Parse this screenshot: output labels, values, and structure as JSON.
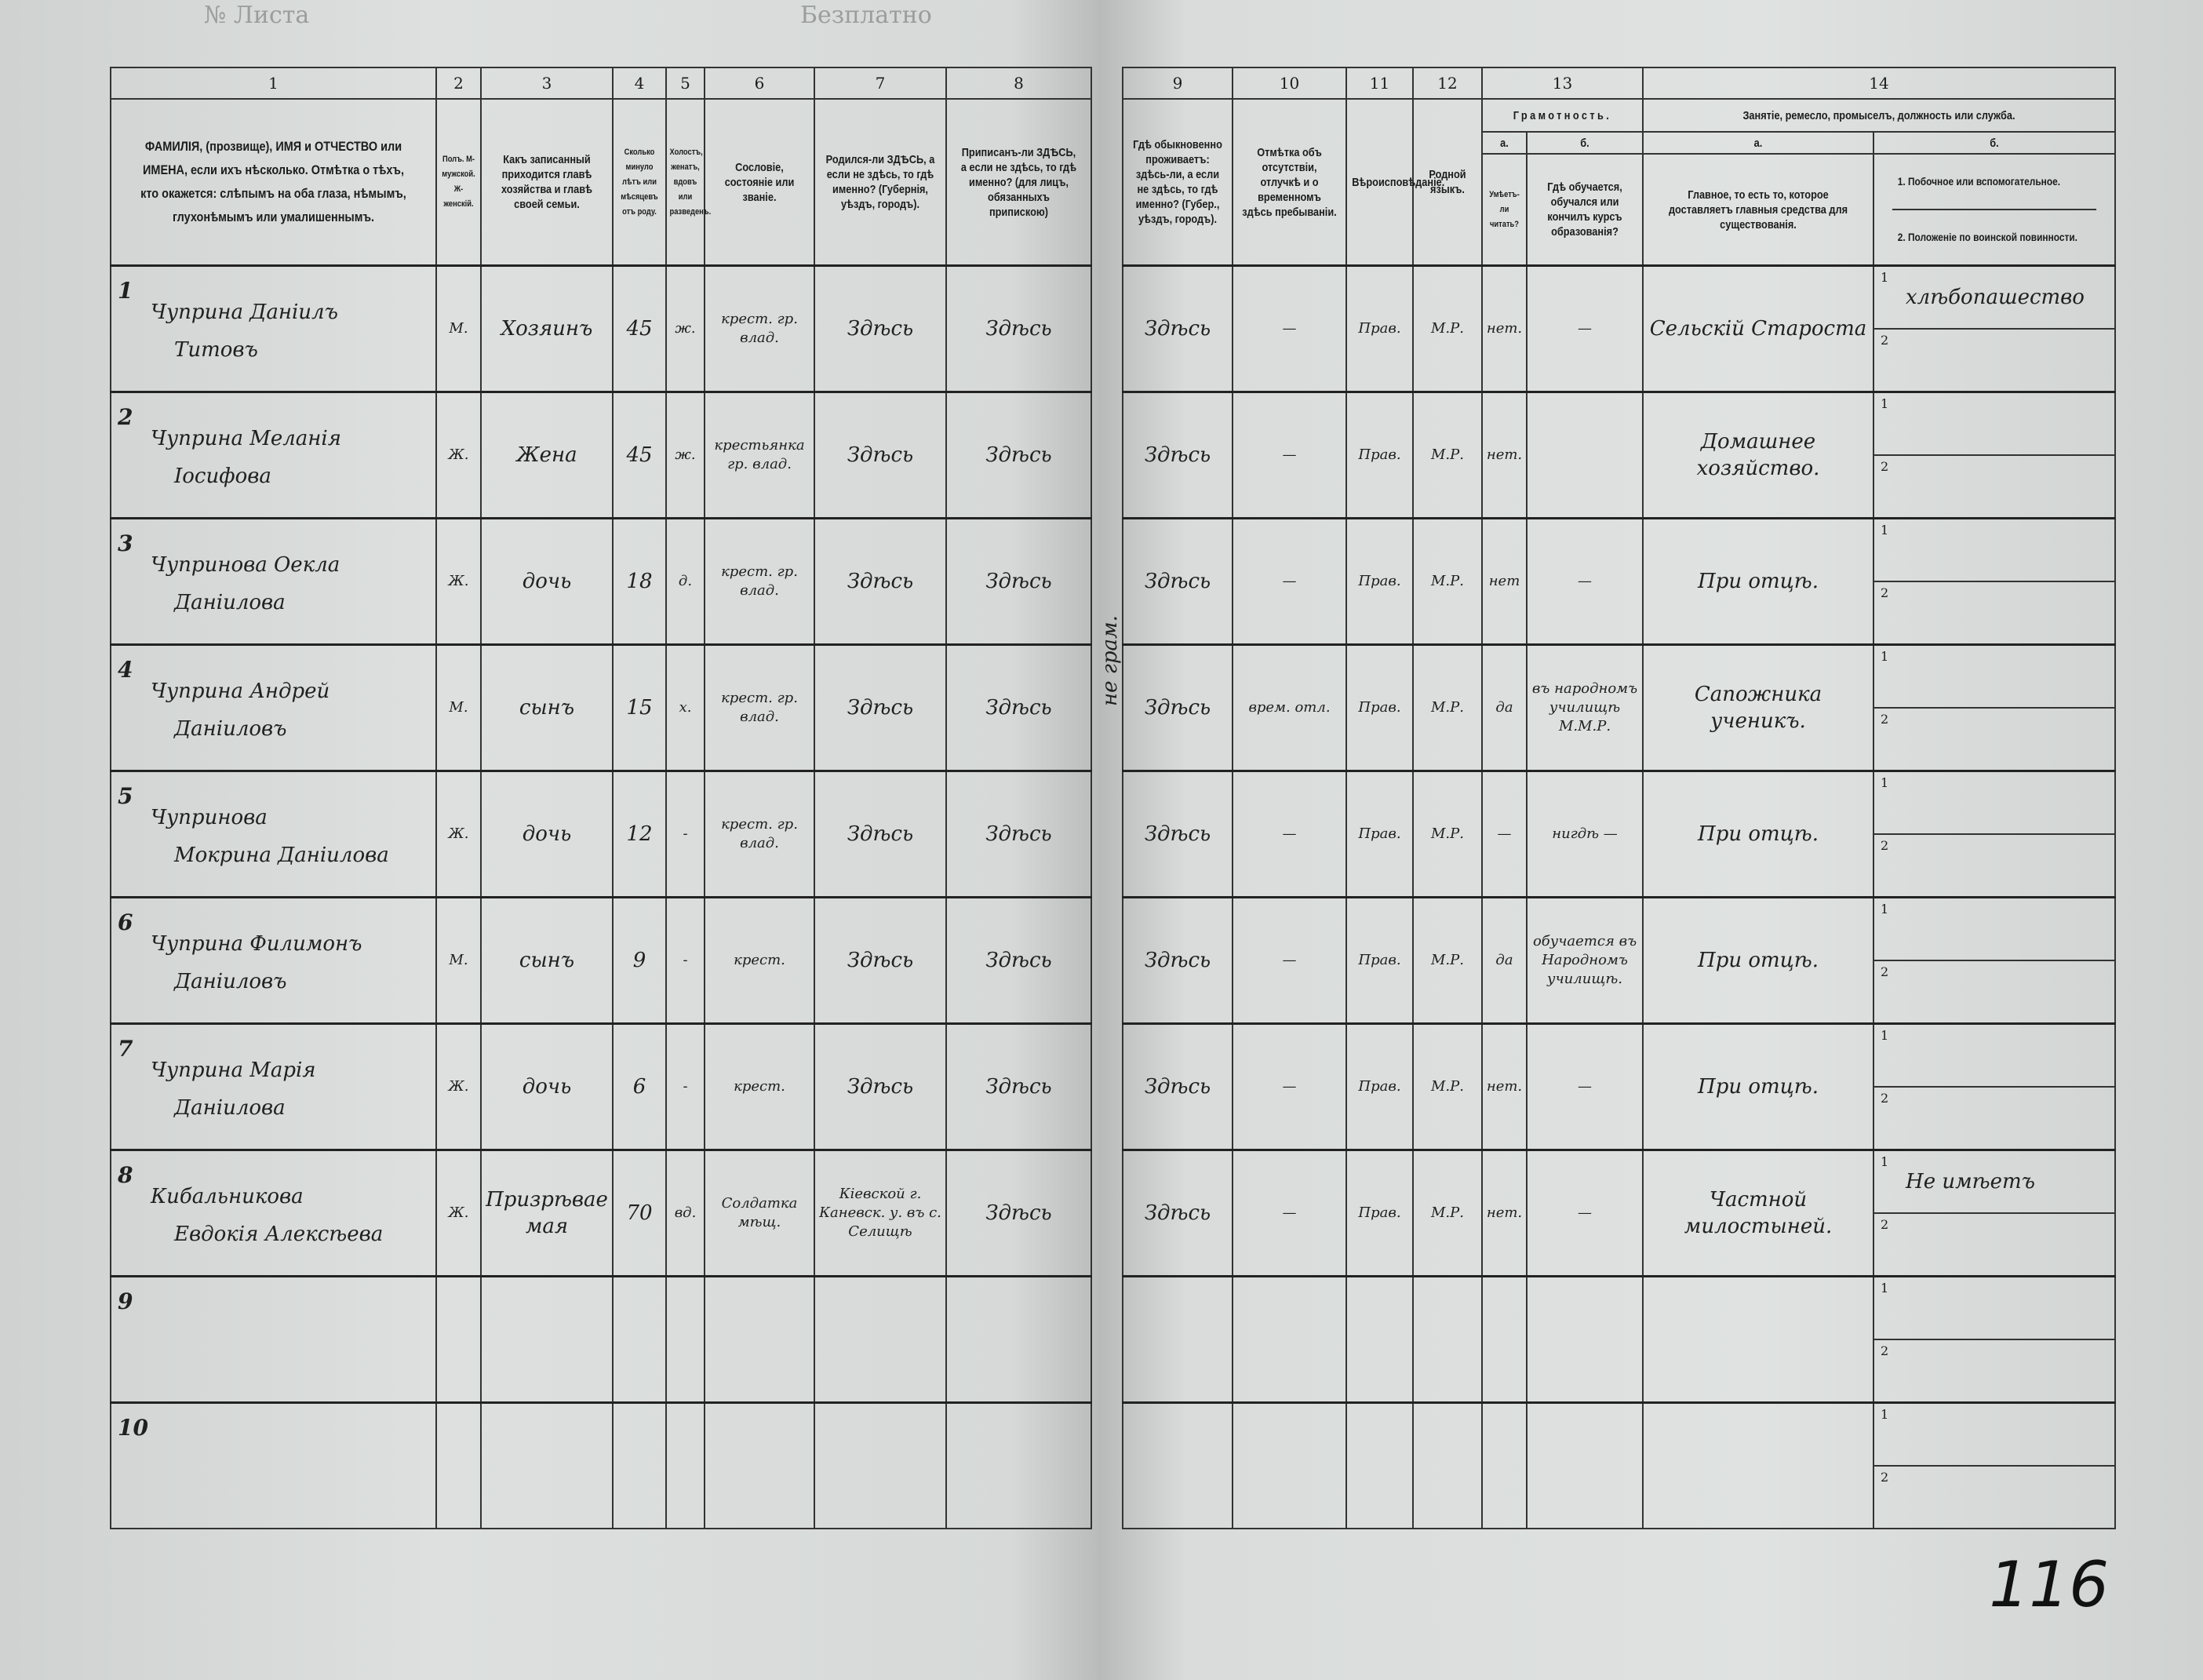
{
  "top_left_print": "№ Листа",
  "top_center_print": "Безплатно",
  "folio_number": "116",
  "margin_note": "не грам.",
  "headers": {
    "numbers": [
      "1",
      "2",
      "3",
      "4",
      "5",
      "6",
      "7",
      "8",
      "9",
      "10",
      "11",
      "12",
      "13",
      "14"
    ],
    "c1": "ФАМИЛІЯ, (прозвище), ИМЯ и ОТЧЕСТВО или ИМЕНА, если ихъ нѣсколько. Отмѣтка о тѣхъ, кто окажется: слѣпымъ на оба глаза, нѣмымъ, глухонѣмымъ или умалишеннымъ.",
    "c2": "Полъ. М-мужской. Ж-женскій.",
    "c3": "Какъ записанный приходится главѣ хозяйства и главѣ своей семьи.",
    "c4": "Сколько минуло лѣтъ или мѣсяцевъ отъ роду.",
    "c5": "Холостъ, женатъ, вдовъ или разведенъ.",
    "c6": "Сословіе, состояніе или званіе.",
    "c7": "Родился-ли ЗДѢСЬ, а если не здѣсь, то гдѣ именно? (Губернія, уѣздъ, городъ).",
    "c8": "Приписанъ-ли ЗДѢСЬ, а если не здѣсь, то гдѣ именно? (для лицъ, обязанныхъ припискою)",
    "c9": "Гдѣ обыкновенно проживаетъ: здѣсь-ли, а если не здѣсь, то гдѣ именно? (Губер., уѣздъ, городъ).",
    "c10": "Отмѣтка объ отсутствіи, отлучкѣ и о временномъ здѣсь пребываніи.",
    "c11": "Вѣроисповѣданіе.",
    "c12": "Родной языкъ.",
    "c13": "Грамотность.",
    "c13a_letter": "а.",
    "c13a": "Умѣетъ-ли читать?",
    "c13b_letter": "б.",
    "c13b": "Гдѣ обучается, обучался или кончилъ курсъ образованія?",
    "c14": "Занятіе, ремесло, промыселъ, должность или служба.",
    "c14a_letter": "а.",
    "c14a": "Главное, то есть то, которое доставляетъ главныя средства для существованія.",
    "c14b_letter": "б.",
    "c14b1": "1. Побочное или вспомогательное.",
    "c14b2": "2. Положеніе по воинской повинности."
  },
  "sub_labels": [
    "1",
    "2"
  ],
  "rows": [
    {
      "n": "1",
      "surname": "Чуприна Даніилъ",
      "given": "Титовъ",
      "sex": "М.",
      "relation": "Хозяинъ",
      "age": "45",
      "marital": "ж.",
      "estate": "крест. гр. влад.",
      "born": "Здѣсь",
      "registered": "Здѣсь",
      "resides": "Здѣсь",
      "absence": "—",
      "religion": "Прав.",
      "language": "М.Р.",
      "literate": "нет.",
      "school": "—",
      "occupation": "Сельскій Староста",
      "side1": "хлѣбопашество",
      "side2": ""
    },
    {
      "n": "2",
      "surname": "Чуприна Меланія",
      "given": "Іосифова",
      "sex": "Ж.",
      "relation": "Жена",
      "age": "45",
      "marital": "ж.",
      "estate": "крестьянка гр. влад.",
      "born": "Здѣсь",
      "registered": "Здѣсь",
      "resides": "Здѣсь",
      "absence": "—",
      "religion": "Прав.",
      "language": "М.Р.",
      "literate": "нет.",
      "school": "",
      "occupation": "Домашнее хозяйство.",
      "side1": "",
      "side2": ""
    },
    {
      "n": "3",
      "surname": "Чупринова Оекла",
      "given": "Даніилова",
      "sex": "Ж.",
      "relation": "дочь",
      "age": "18",
      "marital": "д.",
      "estate": "крест. гр. влад.",
      "born": "Здѣсь",
      "registered": "Здѣсь",
      "resides": "Здѣсь",
      "absence": "—",
      "religion": "Прав.",
      "language": "М.Р.",
      "literate": "нет",
      "school": "—",
      "occupation": "При отцѣ.",
      "side1": "",
      "side2": ""
    },
    {
      "n": "4",
      "surname": "Чуприна Андрей",
      "given": "Даніиловъ",
      "sex": "М.",
      "relation": "сынъ",
      "age": "15",
      "marital": "х.",
      "estate": "крест. гр. влад.",
      "born": "Здѣсь",
      "registered": "Здѣсь",
      "resides": "Здѣсь",
      "absence": "врем. отл.",
      "religion": "Прав.",
      "language": "М.Р.",
      "literate": "да",
      "school": "въ народномъ училищѣ М.М.Р.",
      "occupation": "Сапожника ученикъ.",
      "side1": "",
      "side2": ""
    },
    {
      "n": "5",
      "surname": "Чупринова",
      "given": "Мокрина Даніилова",
      "sex": "Ж.",
      "relation": "дочь",
      "age": "12",
      "marital": "-",
      "estate": "крест. гр. влад.",
      "born": "Здѣсь",
      "registered": "Здѣсь",
      "resides": "Здѣсь",
      "absence": "—",
      "religion": "Прав.",
      "language": "М.Р.",
      "literate": "—",
      "school": "нигдѣ —",
      "occupation": "При отцѣ.",
      "side1": "",
      "side2": ""
    },
    {
      "n": "6",
      "surname": "Чуприна Филимонъ",
      "given": "Даніиловъ",
      "sex": "М.",
      "relation": "сынъ",
      "age": "9",
      "marital": "-",
      "estate": "крест.",
      "born": "Здѣсь",
      "registered": "Здѣсь",
      "resides": "Здѣсь",
      "absence": "—",
      "religion": "Прав.",
      "language": "М.Р.",
      "literate": "да",
      "school": "обучается въ Народномъ училищѣ.",
      "occupation": "При отцѣ.",
      "side1": "",
      "side2": ""
    },
    {
      "n": "7",
      "surname": "Чуприна Марія",
      "given": "Даніилова",
      "sex": "Ж.",
      "relation": "дочь",
      "age": "6",
      "marital": "-",
      "estate": "крест.",
      "born": "Здѣсь",
      "registered": "Здѣсь",
      "resides": "Здѣсь",
      "absence": "—",
      "religion": "Прав.",
      "language": "М.Р.",
      "literate": "нет.",
      "school": "—",
      "occupation": "При отцѣ.",
      "side1": "",
      "side2": ""
    },
    {
      "n": "8",
      "surname": "Кибальникова",
      "given": "Евдокія Алексѣева",
      "sex": "Ж.",
      "relation": "Призрѣваемая",
      "age": "70",
      "marital": "вд.",
      "estate": "Солдатка мѣщ.",
      "born": "Кіевской г. Каневск. у. въ с. Селищѣ",
      "registered": "Здѣсь",
      "resides": "Здѣсь",
      "absence": "—",
      "religion": "Прав.",
      "language": "М.Р.",
      "literate": "нет.",
      "school": "—",
      "occupation": "Частной милостыней.",
      "side1": "Не имѣетъ",
      "side2": ""
    },
    {
      "n": "9",
      "surname": "",
      "given": "",
      "sex": "",
      "relation": "",
      "age": "",
      "marital": "",
      "estate": "",
      "born": "",
      "registered": "",
      "resides": "",
      "absence": "",
      "religion": "",
      "language": "",
      "literate": "",
      "school": "",
      "occupation": "",
      "side1": "",
      "side2": ""
    },
    {
      "n": "10",
      "surname": "",
      "given": "",
      "sex": "",
      "relation": "",
      "age": "",
      "marital": "",
      "estate": "",
      "born": "",
      "registered": "",
      "resides": "",
      "absence": "",
      "religion": "",
      "language": "",
      "literate": "",
      "school": "",
      "occupation": "",
      "side1": "",
      "side2": ""
    }
  ]
}
